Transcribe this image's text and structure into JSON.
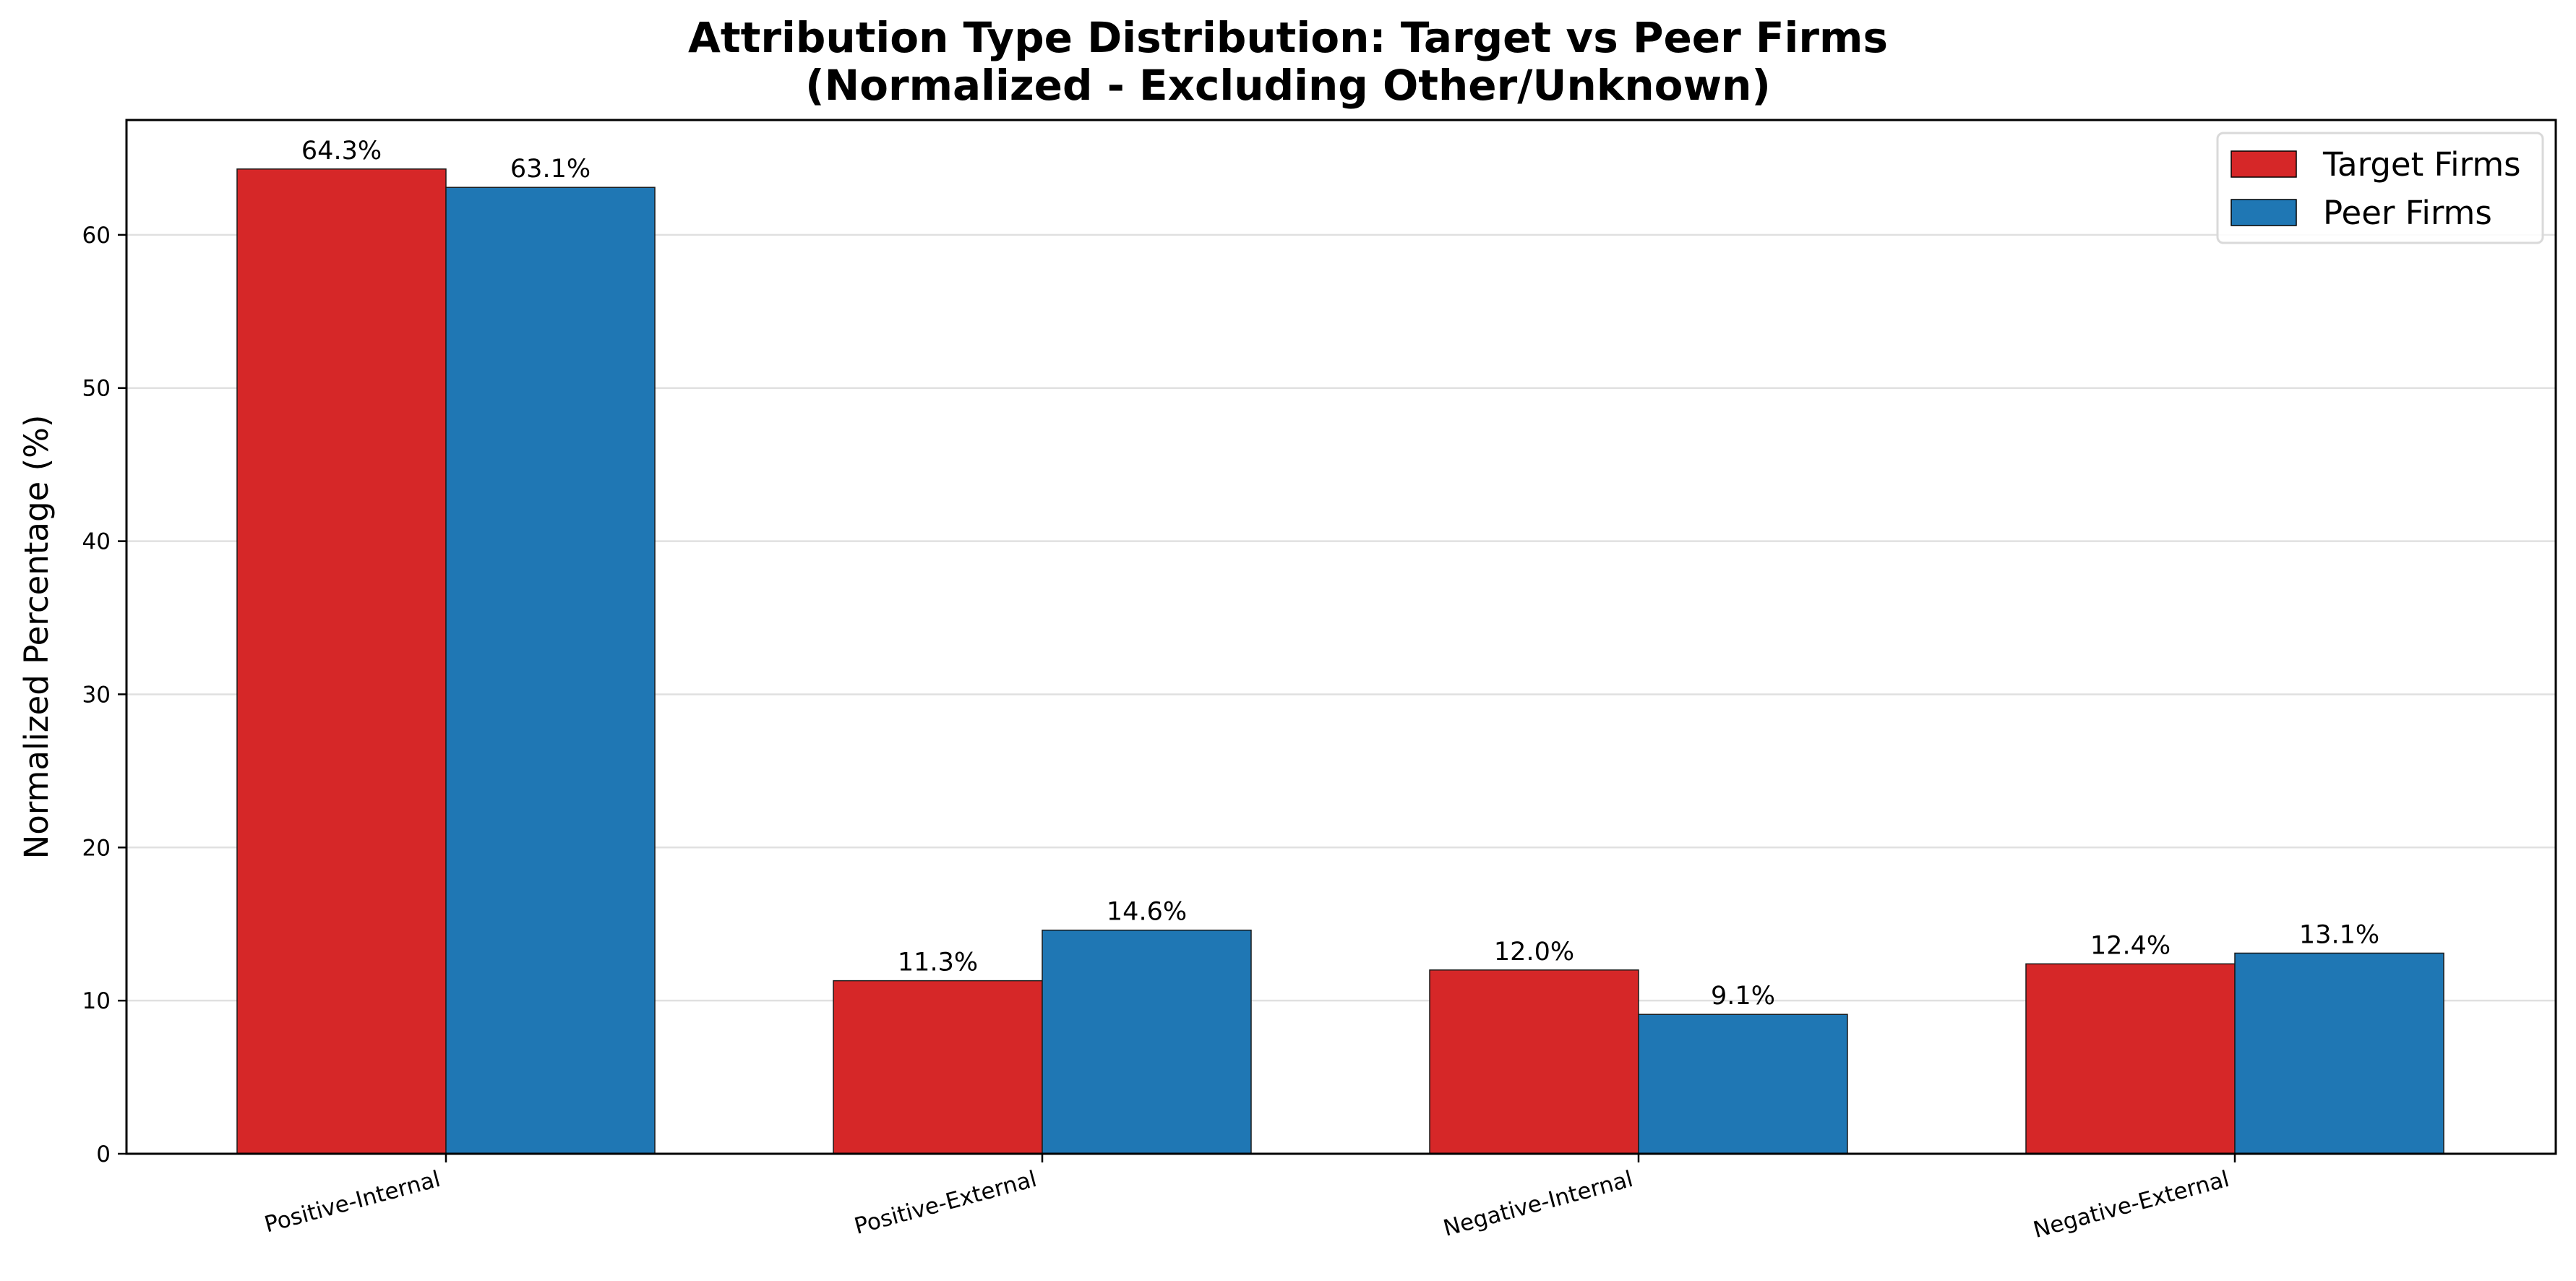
{
  "chart_data": {
    "type": "bar",
    "title_lines": [
      "Attribution Type Distribution: Target vs Peer Firms",
      "(Normalized - Excluding Other/Unknown)"
    ],
    "xlabel": "",
    "ylabel": "Normalized Percentage (%)",
    "categories": [
      "Positive-Internal",
      "Positive-External",
      "Negative-Internal",
      "Negative-External"
    ],
    "series": [
      {
        "name": "Target Firms",
        "color": "#d62728",
        "values": [
          64.3,
          11.3,
          12.0,
          12.4
        ],
        "labels": [
          "64.3%",
          "11.3%",
          "12.0%",
          "12.4%"
        ]
      },
      {
        "name": "Peer Firms",
        "color": "#1f77b4",
        "values": [
          63.1,
          14.6,
          9.1,
          13.1
        ],
        "labels": [
          "63.1%",
          "14.6%",
          "9.1%",
          "13.1%"
        ]
      }
    ],
    "ylim": [
      0,
      67.5
    ],
    "yticks": [
      0,
      10,
      20,
      30,
      40,
      50,
      60
    ],
    "grid": "y",
    "legend_position": "top-right"
  }
}
